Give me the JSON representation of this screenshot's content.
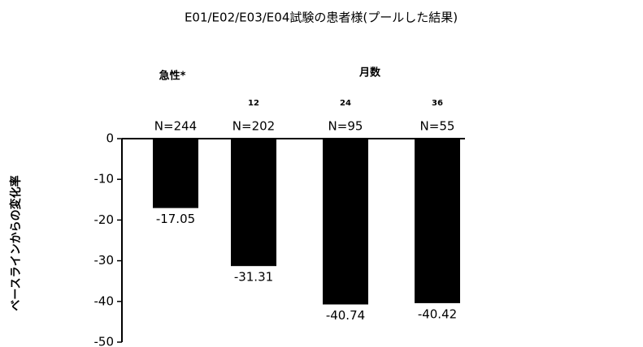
{
  "chart_data": {
    "type": "bar",
    "title": "E01/E02/E03/E04試験の患者様(プールした結果)",
    "y_label": "ベースラインからの変化率",
    "group_labels": [
      "急性*",
      "月数"
    ],
    "period_labels": [
      null,
      "12",
      "24",
      "36"
    ],
    "categories": [
      "N=244",
      "N=202",
      "N=95",
      "N=55"
    ],
    "values": [
      -17.05,
      -31.31,
      -40.74,
      -40.42
    ],
    "color": "#000000",
    "ylim": [
      -50,
      0
    ],
    "yticks": [
      0,
      -10,
      -20,
      -30,
      -40,
      -50
    ],
    "grid": false
  }
}
